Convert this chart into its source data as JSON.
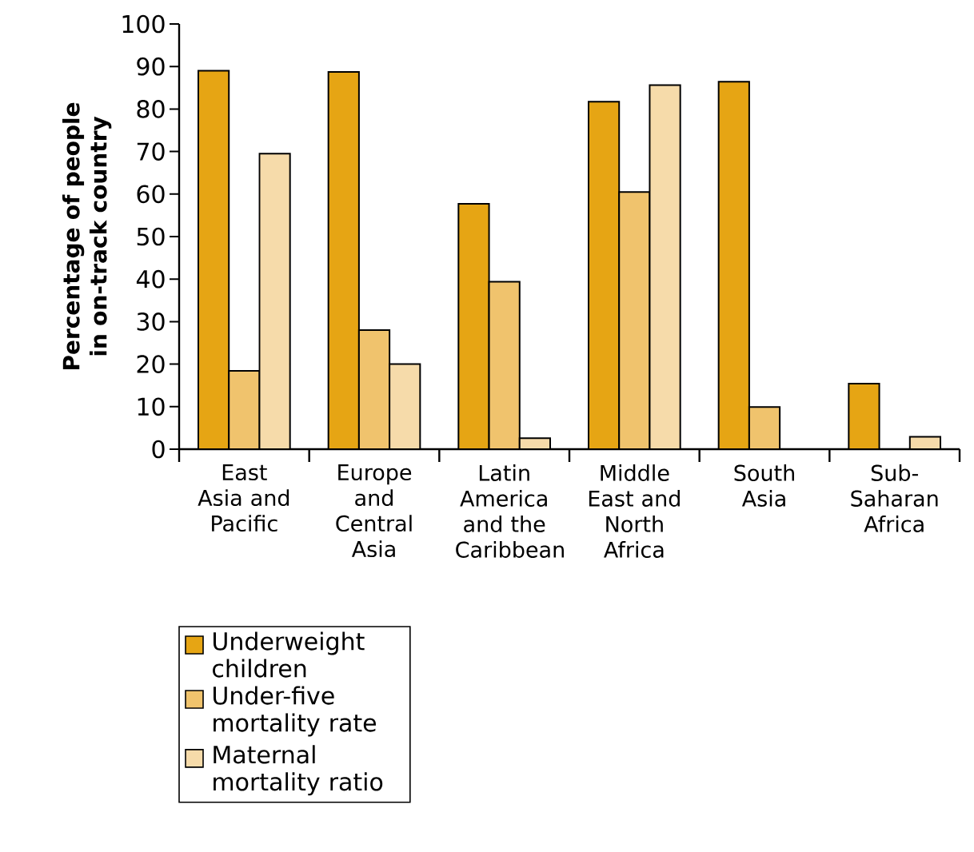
{
  "chart_data": {
    "type": "bar",
    "ylabel": "Percentage of people in on-track country",
    "categories": [
      "East Asia and Pacific",
      "Europe and Central Asia",
      "Latin America and the Caribbean",
      "Middle East and North Africa",
      "South Asia",
      "Sub-Saharan Africa"
    ],
    "series": [
      {
        "name": "Underweight children",
        "color": "#e6a514",
        "values": [
          89,
          88.7,
          57.7,
          81.7,
          86.4,
          15.4
        ]
      },
      {
        "name": "Under-five mortality rate",
        "color": "#f0c36d",
        "values": [
          18.4,
          28,
          39.4,
          60.5,
          9.9,
          null
        ]
      },
      {
        "name": "Maternal mortality ratio",
        "color": "#f6dbaa",
        "values": [
          69.5,
          20,
          2.6,
          85.6,
          null,
          2.9
        ]
      }
    ],
    "ylim": [
      0,
      100
    ],
    "yticks": [
      0,
      10,
      20,
      30,
      40,
      50,
      60,
      70,
      80,
      90,
      100
    ],
    "grid": false,
    "legend": "bottom left"
  }
}
